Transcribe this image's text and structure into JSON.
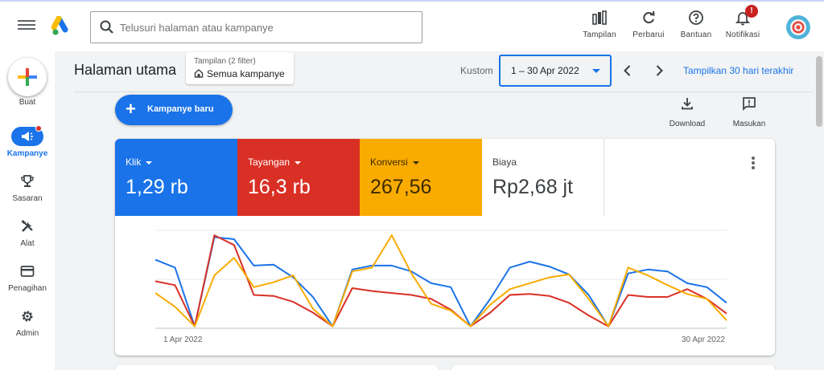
{
  "search": {
    "placeholder": "Telusuri halaman atau kampanye"
  },
  "top_tools": [
    {
      "label": "Tampilan",
      "icon": "bar-chart-icon"
    },
    {
      "label": "Perbarui",
      "icon": "refresh-icon"
    },
    {
      "label": "Bantuan",
      "icon": "help-icon"
    },
    {
      "label": "Notifikasi",
      "icon": "bell-icon",
      "badge": "!"
    }
  ],
  "nav": {
    "create_label": "Buat",
    "items": [
      {
        "label": "Kampanye",
        "icon": "megaphone-icon",
        "active": true
      },
      {
        "label": "Sasaran",
        "icon": "trophy-icon"
      },
      {
        "label": "Alat",
        "icon": "tools-icon"
      },
      {
        "label": "Penagihan",
        "icon": "credit-card-icon"
      },
      {
        "label": "Admin",
        "icon": "gear-icon"
      }
    ]
  },
  "header": {
    "title": "Halaman utama",
    "filter_label": "Tampilan (2 filter)",
    "filter_value": "Semua kampanye",
    "date_label": "Kustom",
    "date_value": "1 – 30 Apr 2022",
    "last30_label": "Tampilkan 30 hari terakhir"
  },
  "actions": {
    "new_campaign": "Kampanye baru",
    "download": "Download",
    "feedback": "Masukan"
  },
  "metrics": [
    {
      "name": "Klik",
      "value": "1,29 rb",
      "color": "#1a73e8",
      "dropdown": true
    },
    {
      "name": "Tayangan",
      "value": "16,3 rb",
      "color": "#d93025",
      "dropdown": true
    },
    {
      "name": "Konversi",
      "value": "267,56",
      "color": "#f9ab00",
      "dropdown": true
    },
    {
      "name": "Biaya",
      "value": "Rp2,68 jt",
      "color": "#ffffff",
      "dropdown": false
    }
  ],
  "chart_data": {
    "type": "line",
    "x_start_label": "1 Apr 2022",
    "x_end_label": "30 Apr 2022",
    "grid": true,
    "series": [
      {
        "name": "Klik",
        "color": "#1a73e8",
        "values": [
          0.7,
          0.62,
          0.02,
          0.93,
          0.91,
          0.64,
          0.65,
          0.52,
          0.32,
          0.02,
          0.6,
          0.64,
          0.64,
          0.58,
          0.46,
          0.42,
          0.02,
          0.3,
          0.62,
          0.68,
          0.63,
          0.55,
          0.34,
          0.02,
          0.56,
          0.6,
          0.58,
          0.46,
          0.42,
          0.26
        ]
      },
      {
        "name": "Tayangan",
        "color": "#d93025",
        "values": [
          0.48,
          0.44,
          0.02,
          0.95,
          0.85,
          0.34,
          0.33,
          0.27,
          0.16,
          0.02,
          0.41,
          0.38,
          0.36,
          0.34,
          0.3,
          0.19,
          0.02,
          0.16,
          0.34,
          0.35,
          0.33,
          0.26,
          0.13,
          0.02,
          0.34,
          0.32,
          0.32,
          0.4,
          0.3,
          0.15
        ]
      },
      {
        "name": "Konversi",
        "color": "#f9ab00",
        "values": [
          0.36,
          0.22,
          0.02,
          0.54,
          0.72,
          0.42,
          0.47,
          0.54,
          0.2,
          0.02,
          0.58,
          0.62,
          0.95,
          0.56,
          0.25,
          0.18,
          0.02,
          0.24,
          0.4,
          0.46,
          0.52,
          0.55,
          0.3,
          0.02,
          0.62,
          0.54,
          0.44,
          0.35,
          0.3,
          0.08
        ]
      }
    ]
  }
}
